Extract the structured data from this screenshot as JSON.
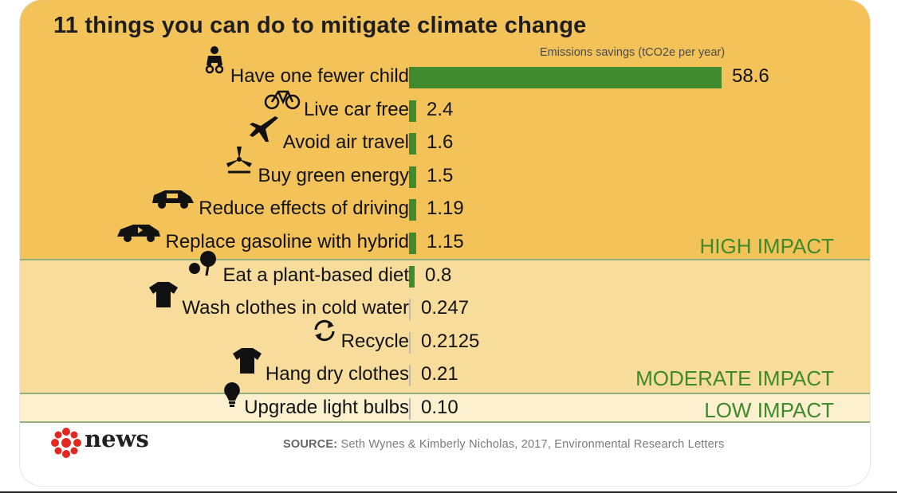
{
  "title": "11 things you can do to mitigate climate change",
  "units_label": "Emissions savings (tCO2e per year)",
  "source": {
    "label": "SOURCE:",
    "text": "Seth Wynes & Kimberly Nicholas, 2017, Environmental Research Letters"
  },
  "logo_text": "news",
  "impact_labels": {
    "high": "HIGH IMPACT",
    "moderate": "MODERATE IMPACT",
    "low": "LOW IMPACT"
  },
  "colors": {
    "bar": "#3f8b2e",
    "high_band": "#f3c35a",
    "moderate_band": "#f8dc9b",
    "low_band": "#fcf0cf",
    "impact_text": "#3c8a2c",
    "logo_red": "#e2281f"
  },
  "chart_data": {
    "type": "bar",
    "orientation": "horizontal",
    "title": "11 things you can do to mitigate climate change",
    "xlabel": "Emissions savings (tCO2e per year)",
    "categories": [
      "Have one fewer child",
      "Live car free",
      "Avoid air travel",
      "Buy green energy",
      "Reduce effects of driving",
      "Replace gasoline with hybrid",
      "Eat a plant-based diet",
      "Wash clothes in cold water",
      "Recycle",
      "Hang dry clothes",
      "Upgrade light bulbs"
    ],
    "values": [
      58.6,
      2.4,
      1.6,
      1.5,
      1.19,
      1.15,
      0.8,
      0.247,
      0.2125,
      0.21,
      0.1
    ],
    "value_labels": [
      "58.6",
      "2.4",
      "1.6",
      "1.5",
      "1.19",
      "1.15",
      "0.8",
      "0.247",
      "0.2125",
      "0.21",
      "0.10"
    ],
    "icons": [
      "baby-icon",
      "bicycle-icon",
      "airplane-icon",
      "wind-turbine-icon",
      "car-icon",
      "hybrid-car-icon",
      "vegetable-icon",
      "shirt-icon",
      "recycle-icon",
      "shirt-icon",
      "light-bulb-icon"
    ],
    "groups": [
      "high",
      "high",
      "high",
      "high",
      "high",
      "high",
      "moderate",
      "moderate",
      "moderate",
      "moderate",
      "low"
    ],
    "xlim": [
      0,
      58.6
    ],
    "grid": false,
    "legend": "none"
  }
}
